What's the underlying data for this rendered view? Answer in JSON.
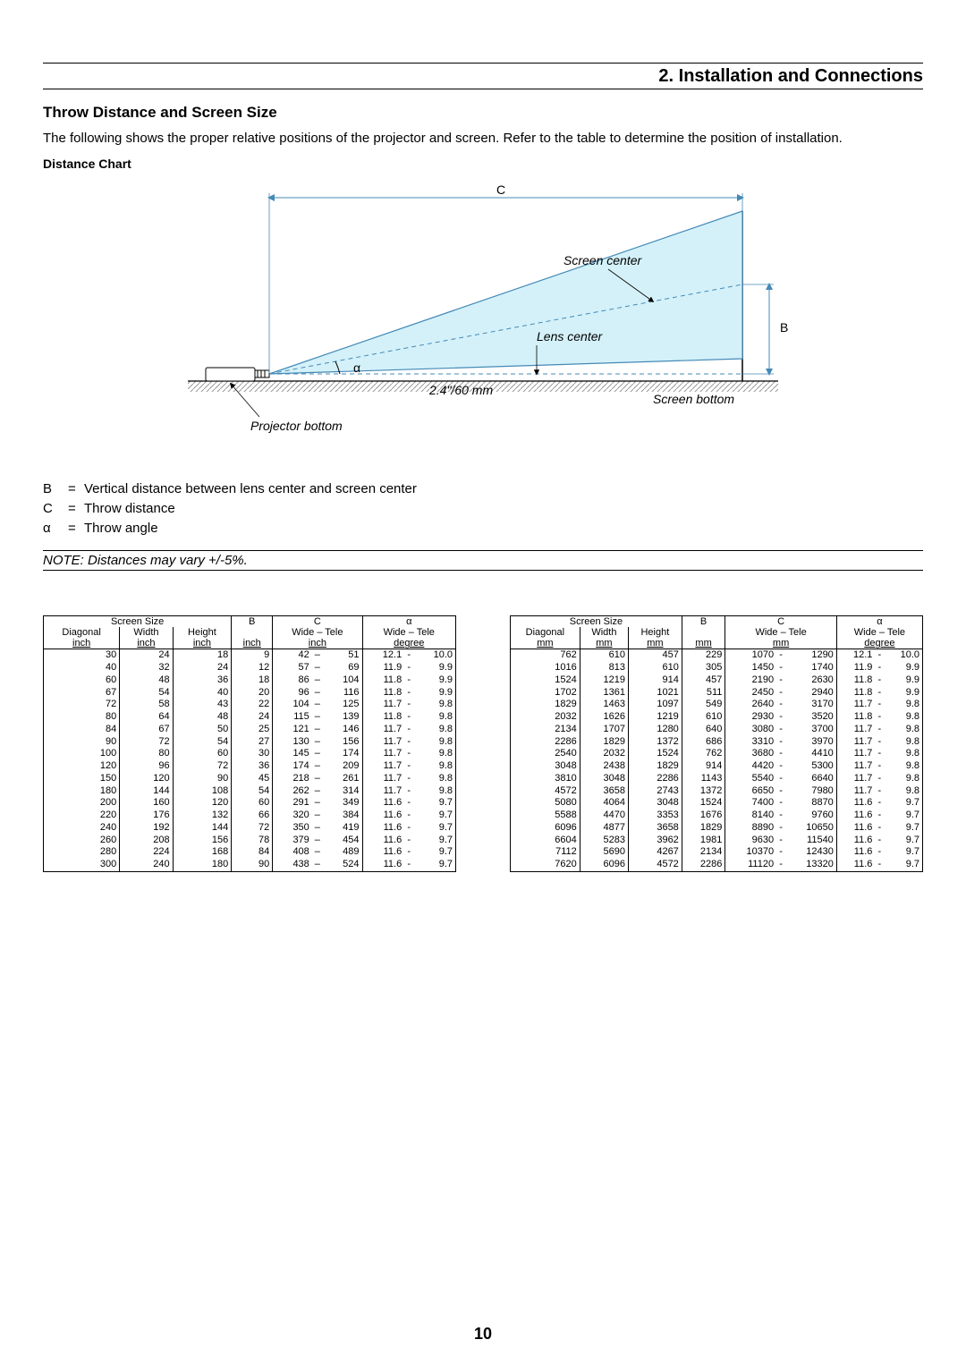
{
  "header_title": "2. Installation and Connections",
  "sub_title": "Throw Distance and Screen Size",
  "intro": "The following shows the proper relative positions of the projector and screen. Refer to the table to determine the position of installation.",
  "distance_chart_label": "Distance Chart",
  "diagram": {
    "label_C": "C",
    "label_B": "B",
    "label_alpha": "α",
    "screen_center": "Screen center",
    "lens_center": "Lens center",
    "projector_bottom": "Projector bottom",
    "screen_bottom": "Screen bottom",
    "dim": "2.4\"/60 mm",
    "colors": {
      "fill": "#d4f1f9",
      "stroke": "#4489b6",
      "line": "#4489b6"
    }
  },
  "defs": {
    "b_sym": "B",
    "b_eq": "=",
    "b_txt": "Vertical distance between lens center and screen center",
    "c_sym": "C",
    "c_eq": "=",
    "c_txt": "Throw distance",
    "a_sym": "α",
    "a_eq": "=",
    "a_txt": "Throw angle"
  },
  "note": "NOTE: Distances may vary +/-5%.",
  "page_num": "10",
  "table_inch": {
    "hdr_screen": "Screen Size",
    "hdr_B": "B",
    "hdr_C": "C",
    "hdr_alpha": "α",
    "sub_diag": "Diagonal",
    "sub_w": "Width",
    "sub_h": "Height",
    "sub_wt": "Wide – Tele",
    "unit_diag": "inch",
    "unit_w": "inch",
    "unit_h": "inch",
    "unit_B": "inch",
    "unit_C": "inch",
    "unit_a": "degree",
    "rows": [
      [
        "30",
        "24",
        "18",
        "9",
        "42",
        "–",
        "51",
        "12.1",
        "-",
        "10.0"
      ],
      [
        "40",
        "32",
        "24",
        "12",
        "57",
        "–",
        "69",
        "11.9",
        "-",
        "9.9"
      ],
      [
        "60",
        "48",
        "36",
        "18",
        "86",
        "–",
        "104",
        "11.8",
        "-",
        "9.9"
      ],
      [
        "67",
        "54",
        "40",
        "20",
        "96",
        "–",
        "116",
        "11.8",
        "-",
        "9.9"
      ],
      [
        "72",
        "58",
        "43",
        "22",
        "104",
        "–",
        "125",
        "11.7",
        "-",
        "9.8"
      ],
      [
        "80",
        "64",
        "48",
        "24",
        "115",
        "–",
        "139",
        "11.8",
        "-",
        "9.8"
      ],
      [
        "84",
        "67",
        "50",
        "25",
        "121",
        "–",
        "146",
        "11.7",
        "-",
        "9.8"
      ],
      [
        "90",
        "72",
        "54",
        "27",
        "130",
        "–",
        "156",
        "11.7",
        "-",
        "9.8"
      ],
      [
        "100",
        "80",
        "60",
        "30",
        "145",
        "–",
        "174",
        "11.7",
        "-",
        "9.8"
      ],
      [
        "120",
        "96",
        "72",
        "36",
        "174",
        "–",
        "209",
        "11.7",
        "-",
        "9.8"
      ],
      [
        "150",
        "120",
        "90",
        "45",
        "218",
        "–",
        "261",
        "11.7",
        "-",
        "9.8"
      ],
      [
        "180",
        "144",
        "108",
        "54",
        "262",
        "–",
        "314",
        "11.7",
        "-",
        "9.8"
      ],
      [
        "200",
        "160",
        "120",
        "60",
        "291",
        "–",
        "349",
        "11.6",
        "-",
        "9.7"
      ],
      [
        "220",
        "176",
        "132",
        "66",
        "320",
        "–",
        "384",
        "11.6",
        "-",
        "9.7"
      ],
      [
        "240",
        "192",
        "144",
        "72",
        "350",
        "–",
        "419",
        "11.6",
        "-",
        "9.7"
      ],
      [
        "260",
        "208",
        "156",
        "78",
        "379",
        "–",
        "454",
        "11.6",
        "-",
        "9.7"
      ],
      [
        "280",
        "224",
        "168",
        "84",
        "408",
        "–",
        "489",
        "11.6",
        "-",
        "9.7"
      ],
      [
        "300",
        "240",
        "180",
        "90",
        "438",
        "–",
        "524",
        "11.6",
        "-",
        "9.7"
      ]
    ]
  },
  "table_mm": {
    "hdr_screen": "Screen Size",
    "hdr_B": "B",
    "hdr_C": "C",
    "hdr_alpha": "α",
    "sub_diag": "Diagonal",
    "sub_w": "Width",
    "sub_h": "Height",
    "sub_wt": "Wide – Tele",
    "unit_diag": "mm",
    "unit_w": "mm",
    "unit_h": "mm",
    "unit_B": "mm",
    "unit_C": "mm",
    "unit_a": "degree",
    "rows": [
      [
        "762",
        "610",
        "457",
        "229",
        "1070",
        "-",
        "1290",
        "12.1",
        "-",
        "10.0"
      ],
      [
        "1016",
        "813",
        "610",
        "305",
        "1450",
        "-",
        "1740",
        "11.9",
        "-",
        "9.9"
      ],
      [
        "1524",
        "1219",
        "914",
        "457",
        "2190",
        "-",
        "2630",
        "11.8",
        "-",
        "9.9"
      ],
      [
        "1702",
        "1361",
        "1021",
        "511",
        "2450",
        "-",
        "2940",
        "11.8",
        "-",
        "9.9"
      ],
      [
        "1829",
        "1463",
        "1097",
        "549",
        "2640",
        "-",
        "3170",
        "11.7",
        "-",
        "9.8"
      ],
      [
        "2032",
        "1626",
        "1219",
        "610",
        "2930",
        "-",
        "3520",
        "11.8",
        "-",
        "9.8"
      ],
      [
        "2134",
        "1707",
        "1280",
        "640",
        "3080",
        "-",
        "3700",
        "11.7",
        "-",
        "9.8"
      ],
      [
        "2286",
        "1829",
        "1372",
        "686",
        "3310",
        "-",
        "3970",
        "11.7",
        "-",
        "9.8"
      ],
      [
        "2540",
        "2032",
        "1524",
        "762",
        "3680",
        "-",
        "4410",
        "11.7",
        "-",
        "9.8"
      ],
      [
        "3048",
        "2438",
        "1829",
        "914",
        "4420",
        "-",
        "5300",
        "11.7",
        "-",
        "9.8"
      ],
      [
        "3810",
        "3048",
        "2286",
        "1143",
        "5540",
        "-",
        "6640",
        "11.7",
        "-",
        "9.8"
      ],
      [
        "4572",
        "3658",
        "2743",
        "1372",
        "6650",
        "-",
        "7980",
        "11.7",
        "-",
        "9.8"
      ],
      [
        "5080",
        "4064",
        "3048",
        "1524",
        "7400",
        "-",
        "8870",
        "11.6",
        "-",
        "9.7"
      ],
      [
        "5588",
        "4470",
        "3353",
        "1676",
        "8140",
        "-",
        "9760",
        "11.6",
        "-",
        "9.7"
      ],
      [
        "6096",
        "4877",
        "3658",
        "1829",
        "8890",
        "-",
        "10650",
        "11.6",
        "-",
        "9.7"
      ],
      [
        "6604",
        "5283",
        "3962",
        "1981",
        "9630",
        "-",
        "11540",
        "11.6",
        "-",
        "9.7"
      ],
      [
        "7112",
        "5690",
        "4267",
        "2134",
        "10370",
        "-",
        "12430",
        "11.6",
        "-",
        "9.7"
      ],
      [
        "7620",
        "6096",
        "4572",
        "2286",
        "11120",
        "-",
        "13320",
        "11.6",
        "-",
        "9.7"
      ]
    ]
  }
}
